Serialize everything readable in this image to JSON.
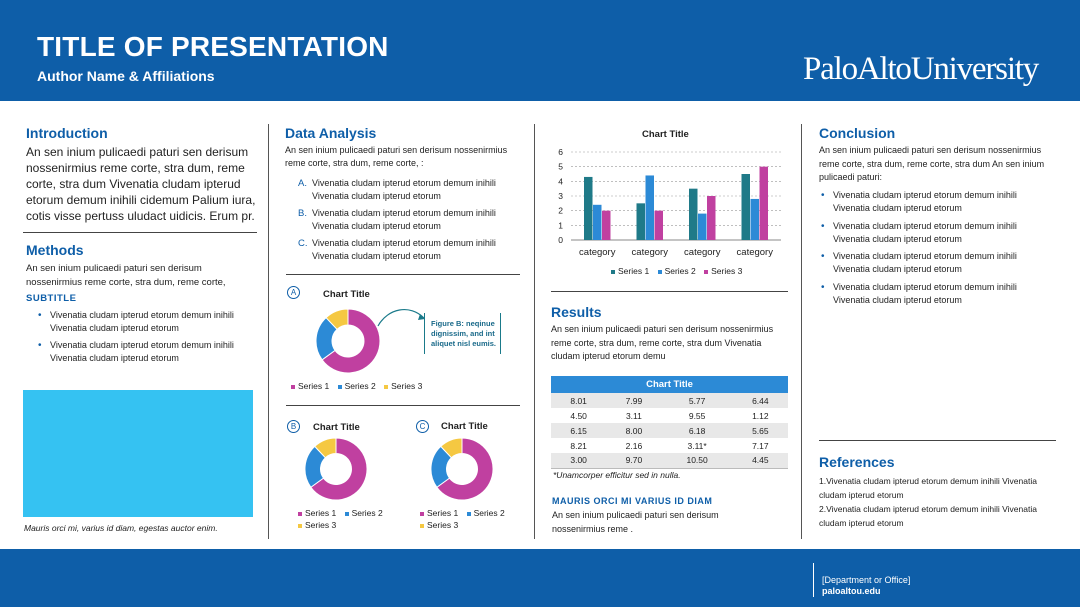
{
  "header": {
    "title": "TITLE OF PRESENTATION",
    "authors": "Author Name & Affiliations",
    "logo": "PaloAltoUniversity"
  },
  "footer": {
    "department": "[Department or Office]",
    "url": "paloaltou.edu"
  },
  "intro": {
    "heading": "Introduction",
    "body": "An sen inium pulicaedi paturi sen derisum nossenirmius reme corte, stra dum, reme corte, stra dum Vivenatia cludam ipterud etorum demum inihili cidemum Palium iura, cotis visse pertuss uludact uidicis. Erum pr."
  },
  "methods": {
    "heading": "Methods",
    "body": "An sen inium pulicaedi paturi sen derisum nossenirmius reme corte, stra dum, reme corte,",
    "subtitle": "SUBTITLE",
    "bullets": [
      "Vivenatia cludam ipterud etorum demum inihili Vivenatia cludam ipterud etorum",
      "Vivenatia cludam ipterud etorum demum inihili Vivenatia cludam ipterud etorum"
    ],
    "image_caption": "Mauris orci mi, varius id diam, egestas auctor enim."
  },
  "data_analysis": {
    "heading": "Data Analysis",
    "body": "An sen inium pulicaedi paturi sen derisum nossenirmius reme corte, stra dum, reme corte, :",
    "items": [
      {
        "letter": "A.",
        "text": "Vivenatia cludam ipterud etorum demum inihili Vivenatia cludam ipterud etorum"
      },
      {
        "letter": "B.",
        "text": "Vivenatia cludam ipterud etorum demum inihili Vivenatia cludam ipterud etorum"
      },
      {
        "letter": "C.",
        "text": "Vivenatia cludam ipterud etorum demum inihili Vivenatia cludam ipterud etorum"
      }
    ],
    "figure_b_note": "Figure B: neqinue dignissim, and int aliquet nisl eumis.",
    "label_a": "A",
    "label_b": "B",
    "label_c": "C"
  },
  "results": {
    "heading": "Results",
    "body": "An sen inium pulicaedi paturi sen derisum nossenirmius reme corte, stra dum, reme corte, stra dum Vivenatia cludam ipterud etorum demu",
    "table_note": "*Unamcorper efficitur sed in nulla.",
    "subheading": "MAURIS ORCI MI VARIUS ID DIAM",
    "sub_body": "An sen inium pulicaedi paturi sen derisum nossenirmius reme ."
  },
  "conclusion": {
    "heading": "Conclusion",
    "body": "An sen inium pulicaedi paturi sen derisum nossenirmius reme corte, stra dum, reme corte, stra dum An sen inium pulicaedi paturi:",
    "bullets": [
      "Vivenatia cludam ipterud etorum demum inihili Vivenatia cludam ipterud etorum",
      "Vivenatia cludam ipterud etorum demum inihili Vivenatia cludam ipterud etorum",
      "Vivenatia cludam ipterud etorum demum inihili Vivenatia cludam ipterud etorum",
      "Vivenatia cludam ipterud etorum demum inihili Vivenatia cludam ipterud etorum"
    ]
  },
  "references": {
    "heading": "References",
    "items": [
      "1.Vivenatia cludam ipterud etorum demum inihili Vivenatia cludam ipterud etorum",
      "2.Vivenatia cludam ipterud etorum demum inihili Vivenatia cludam ipterud etorum"
    ]
  },
  "colors": {
    "brand": "#0e5ea8",
    "series1": "#c040a0",
    "series2": "#2c8ad6",
    "series3": "#f5c842",
    "bar1": "#1f7a88",
    "bar2": "#2c8ad6",
    "bar3": "#c040a0"
  },
  "chart_data": [
    {
      "type": "bar",
      "title": "Chart Title",
      "categories": [
        "category",
        "category",
        "category",
        "category"
      ],
      "series": [
        {
          "name": "Series 1",
          "values": [
            4.3,
            2.5,
            3.5,
            4.5
          ]
        },
        {
          "name": "Series 2",
          "values": [
            2.4,
            4.4,
            1.8,
            2.8
          ]
        },
        {
          "name": "Series 3",
          "values": [
            2.0,
            2.0,
            3.0,
            5.0
          ]
        }
      ],
      "ylim": [
        0,
        6
      ],
      "yticks": [
        "0",
        "1",
        "2",
        "3",
        "4",
        "5",
        "6"
      ],
      "legend": "bottom",
      "grid": true
    },
    {
      "type": "pie",
      "title": "Chart Title",
      "labels": [
        "Series 1",
        "Series 2",
        "Series 3"
      ],
      "values": [
        65,
        23,
        12
      ],
      "legend": "bottom"
    },
    {
      "type": "pie",
      "title": "Chart Title",
      "labels": [
        "Series 1",
        "Series 2",
        "Series 3"
      ],
      "values": [
        65,
        23,
        12
      ],
      "legend": "bottom"
    },
    {
      "type": "pie",
      "title": "Chart Title",
      "labels": [
        "Series 1",
        "Series 2",
        "Series 3"
      ],
      "values": [
        65,
        23,
        12
      ],
      "legend": "bottom"
    },
    {
      "type": "table",
      "title": "Chart Title",
      "rows": [
        [
          "8.01",
          "7.99",
          "5.77",
          "6.44"
        ],
        [
          "4.50",
          "3.11",
          "9.55",
          "1.12"
        ],
        [
          "6.15",
          "8.00",
          "6.18",
          "5.65"
        ],
        [
          "8.21",
          "2.16",
          "3.11*",
          "7.17"
        ],
        [
          "3.00",
          "9.70",
          "10.50",
          "4.45"
        ]
      ]
    }
  ]
}
